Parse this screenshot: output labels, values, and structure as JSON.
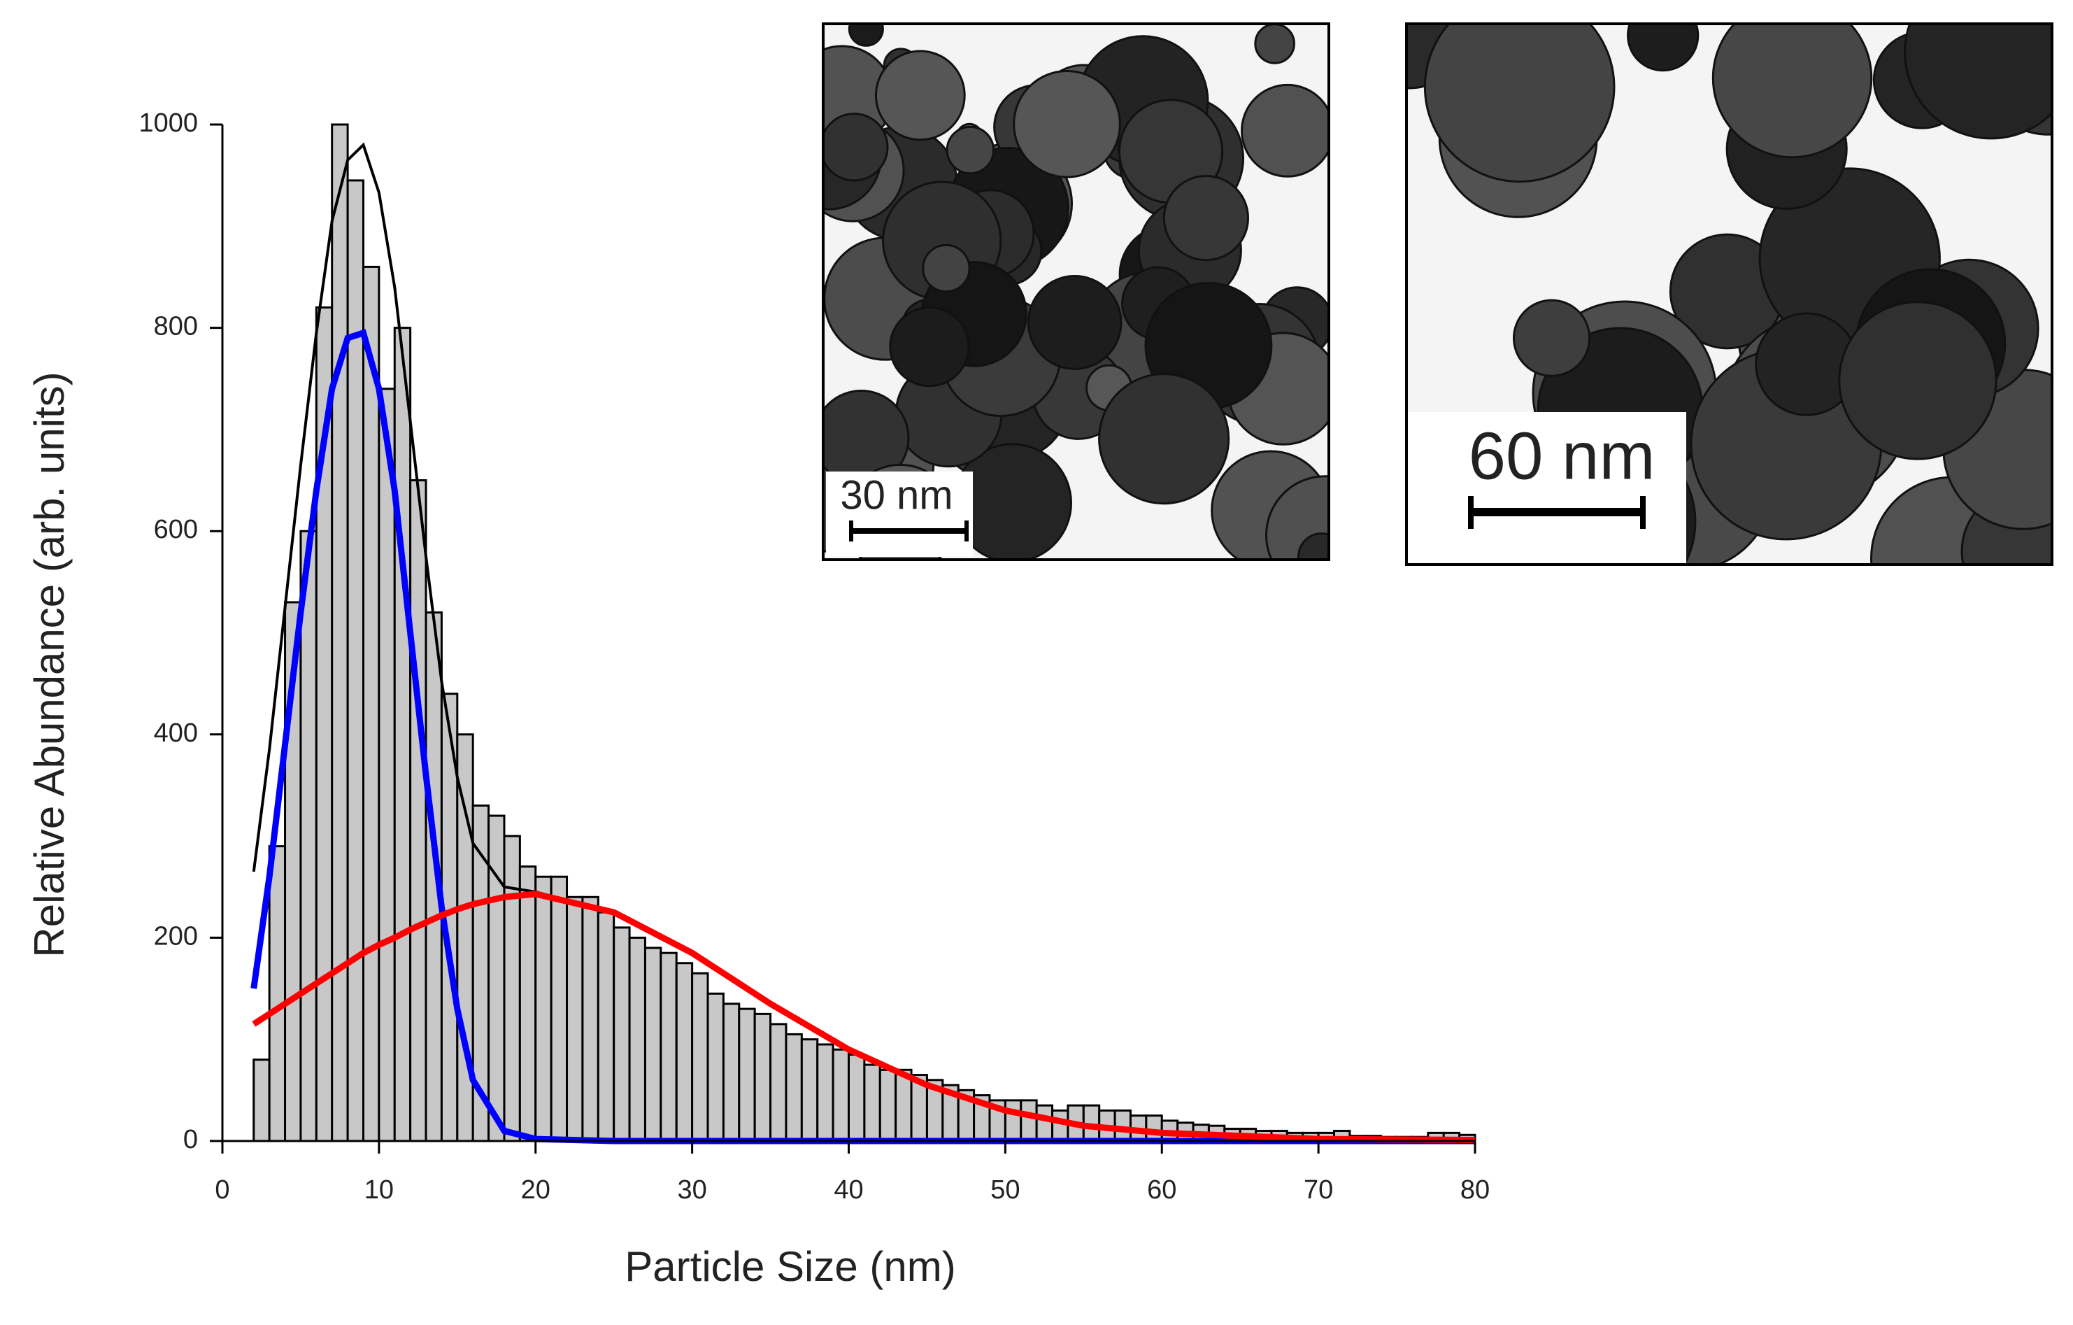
{
  "chart_data": {
    "type": "histogram",
    "xlabel": "Particle Size (nm)",
    "ylabel": "Relative Abundance (arb. units)",
    "xlim": [
      0,
      80
    ],
    "ylim": [
      0,
      1000
    ],
    "xticks": [
      0,
      10,
      20,
      30,
      40,
      50,
      60,
      70,
      80
    ],
    "yticks": [
      0,
      200,
      400,
      600,
      800,
      1000
    ],
    "color": "#c8c8c8",
    "bins": [
      2,
      3,
      4,
      5,
      6,
      7,
      8,
      9,
      10,
      11,
      12,
      13,
      14,
      15,
      16,
      17,
      18,
      19,
      20,
      21,
      22,
      23,
      24,
      25,
      26,
      27,
      28,
      29,
      30,
      31,
      32,
      33,
      34,
      35,
      36,
      37,
      38,
      39,
      40,
      41,
      42,
      43,
      44,
      45,
      46,
      47,
      48,
      49,
      50,
      51,
      52,
      53,
      54,
      55,
      56,
      57,
      58,
      59,
      60,
      61,
      62,
      63,
      64,
      65,
      66,
      67,
      68,
      69,
      70,
      71,
      72,
      73,
      74,
      75,
      76,
      77,
      78,
      79,
      80
    ],
    "values": [
      80,
      290,
      530,
      600,
      820,
      1000,
      945,
      860,
      740,
      800,
      650,
      520,
      440,
      400,
      330,
      320,
      300,
      270,
      260,
      260,
      240,
      240,
      225,
      210,
      200,
      190,
      185,
      175,
      165,
      145,
      135,
      130,
      125,
      115,
      105,
      100,
      95,
      90,
      85,
      75,
      70,
      70,
      65,
      60,
      55,
      50,
      45,
      40,
      40,
      40,
      35,
      30,
      35,
      35,
      30,
      30,
      25,
      25,
      20,
      18,
      16,
      15,
      12,
      12,
      10,
      10,
      8,
      8,
      8,
      10,
      5,
      5,
      4,
      4,
      4,
      8,
      8,
      6
    ],
    "curves": [
      {
        "color": "#000000",
        "x": [
          2,
          3,
          4,
          5,
          6,
          7,
          8,
          9,
          10,
          11,
          12,
          13,
          14,
          15,
          16,
          18,
          20,
          25,
          30,
          35,
          40,
          45,
          50,
          55,
          60,
          70,
          80
        ],
        "values": [
          265,
          385,
          525,
          665,
          795,
          905,
          965,
          980,
          933,
          840,
          708,
          575,
          452,
          358,
          293,
          250,
          245,
          225,
          185,
          135,
          90,
          55,
          30,
          15,
          8,
          2,
          1
        ]
      },
      {
        "color": "#0000ff",
        "x": [
          2,
          3,
          4,
          5,
          6,
          7,
          8,
          9,
          10,
          11,
          12,
          13,
          14,
          15,
          16,
          18,
          20,
          25,
          30,
          40,
          50,
          60,
          70,
          80
        ],
        "values": [
          150,
          260,
          390,
          520,
          640,
          740,
          790,
          795,
          740,
          640,
          500,
          360,
          230,
          130,
          60,
          10,
          2,
          0,
          0,
          0,
          0,
          0,
          0,
          0
        ]
      },
      {
        "color": "#ff0000",
        "x": [
          2,
          3,
          4,
          5,
          6,
          7,
          8,
          9,
          10,
          11,
          12,
          13,
          14,
          15,
          16,
          18,
          20,
          25,
          30,
          35,
          40,
          45,
          50,
          55,
          60,
          70,
          80
        ],
        "values": [
          115,
          125,
          135,
          145,
          155,
          165,
          175,
          185,
          193,
          200,
          208,
          215,
          222,
          228,
          233,
          240,
          243,
          225,
          185,
          135,
          90,
          55,
          30,
          15,
          8,
          2,
          1
        ]
      }
    ],
    "insets": [
      {
        "scale_label": "30 nm"
      },
      {
        "scale_label": "60 nm"
      }
    ]
  }
}
